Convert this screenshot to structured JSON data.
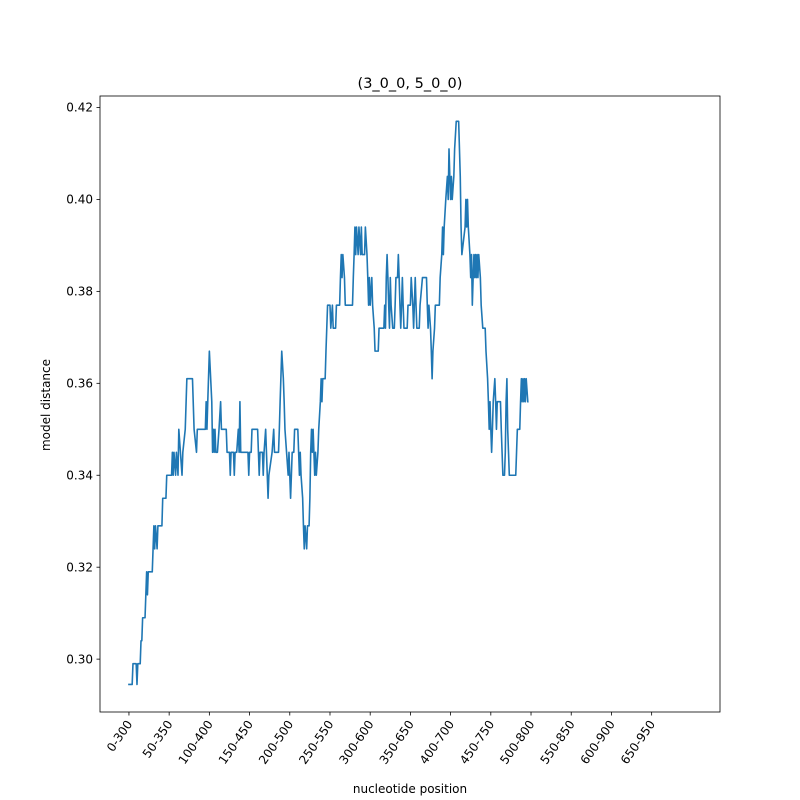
{
  "chart_data": {
    "type": "line",
    "title": "(3_0_0, 5_0_0)",
    "xlabel": "nucleotide position",
    "ylabel": "model distance",
    "ylim": [
      0.2885,
      0.4225
    ],
    "yticks": [
      0.3,
      0.32,
      0.34,
      0.36,
      0.38,
      0.4,
      0.42
    ],
    "ytick_labels": [
      "0.30",
      "0.32",
      "0.34",
      "0.36",
      "0.38",
      "0.40",
      "0.42"
    ],
    "xlim": [
      -36,
      735
    ],
    "xticks": [
      0,
      50,
      100,
      150,
      200,
      250,
      300,
      350,
      400,
      450,
      500,
      550,
      600,
      650
    ],
    "xtick_labels": [
      "0-300",
      "50-350",
      "100-400",
      "150-450",
      "200-500",
      "250-550",
      "300-600",
      "350-650",
      "400-700",
      "450-750",
      "500-800",
      "550-850",
      "600-900",
      "650-950"
    ],
    "grid": false,
    "series": [
      {
        "color": "#1f77b4",
        "points": [
          [
            0,
            0.2945
          ],
          [
            4,
            0.2945
          ],
          [
            5,
            0.299
          ],
          [
            9,
            0.299
          ],
          [
            10,
            0.2945
          ],
          [
            11,
            0.299
          ],
          [
            14,
            0.299
          ],
          [
            15,
            0.304
          ],
          [
            16,
            0.304
          ],
          [
            17,
            0.309
          ],
          [
            20,
            0.309
          ],
          [
            21,
            0.314
          ],
          [
            22,
            0.319
          ],
          [
            23,
            0.314
          ],
          [
            24,
            0.319
          ],
          [
            29,
            0.319
          ],
          [
            30,
            0.324
          ],
          [
            31,
            0.329
          ],
          [
            32,
            0.324
          ],
          [
            33,
            0.329
          ],
          [
            35,
            0.324
          ],
          [
            36,
            0.329
          ],
          [
            41,
            0.329
          ],
          [
            42,
            0.335
          ],
          [
            46,
            0.335
          ],
          [
            47,
            0.34
          ],
          [
            53,
            0.34
          ],
          [
            54,
            0.345
          ],
          [
            55,
            0.34
          ],
          [
            56,
            0.345
          ],
          [
            58,
            0.34
          ],
          [
            59,
            0.345
          ],
          [
            61,
            0.34
          ],
          [
            62,
            0.35
          ],
          [
            64,
            0.345
          ],
          [
            66,
            0.34
          ],
          [
            67,
            0.345
          ],
          [
            70,
            0.35
          ],
          [
            72,
            0.361
          ],
          [
            79,
            0.361
          ],
          [
            81,
            0.35
          ],
          [
            84,
            0.345
          ],
          [
            85,
            0.35
          ],
          [
            95,
            0.35
          ],
          [
            96,
            0.356
          ],
          [
            97,
            0.35
          ],
          [
            98,
            0.356
          ],
          [
            100,
            0.367
          ],
          [
            103,
            0.356
          ],
          [
            104,
            0.345
          ],
          [
            105,
            0.35
          ],
          [
            106,
            0.345
          ],
          [
            107,
            0.35
          ],
          [
            108,
            0.345
          ],
          [
            110,
            0.345
          ],
          [
            112,
            0.35
          ],
          [
            114,
            0.356
          ],
          [
            115,
            0.35
          ],
          [
            121,
            0.35
          ],
          [
            122,
            0.345
          ],
          [
            125,
            0.345
          ],
          [
            126,
            0.34
          ],
          [
            127,
            0.345
          ],
          [
            130,
            0.345
          ],
          [
            131,
            0.34
          ],
          [
            132,
            0.345
          ],
          [
            134,
            0.345
          ],
          [
            136,
            0.35
          ],
          [
            137,
            0.345
          ],
          [
            138,
            0.356
          ],
          [
            139,
            0.345
          ],
          [
            148,
            0.345
          ],
          [
            149,
            0.34
          ],
          [
            150,
            0.345
          ],
          [
            152,
            0.345
          ],
          [
            153,
            0.35
          ],
          [
            160,
            0.35
          ],
          [
            161,
            0.345
          ],
          [
            162,
            0.34
          ],
          [
            163,
            0.345
          ],
          [
            166,
            0.345
          ],
          [
            167,
            0.34
          ],
          [
            168,
            0.345
          ],
          [
            170,
            0.35
          ],
          [
            171,
            0.345
          ],
          [
            172,
            0.34
          ],
          [
            173,
            0.335
          ],
          [
            174,
            0.34
          ],
          [
            178,
            0.345
          ],
          [
            180,
            0.35
          ],
          [
            181,
            0.345
          ],
          [
            186,
            0.345
          ],
          [
            187,
            0.35
          ],
          [
            188,
            0.356
          ],
          [
            190,
            0.367
          ],
          [
            192,
            0.361
          ],
          [
            193,
            0.356
          ],
          [
            194,
            0.35
          ],
          [
            198,
            0.34
          ],
          [
            199,
            0.345
          ],
          [
            200,
            0.34
          ],
          [
            201,
            0.335
          ],
          [
            202,
            0.34
          ],
          [
            203,
            0.345
          ],
          [
            205,
            0.345
          ],
          [
            206,
            0.35
          ],
          [
            210,
            0.35
          ],
          [
            211,
            0.345
          ],
          [
            212,
            0.34
          ],
          [
            213,
            0.345
          ],
          [
            214,
            0.34
          ],
          [
            216,
            0.335
          ],
          [
            217,
            0.329
          ],
          [
            218,
            0.324
          ],
          [
            219,
            0.329
          ],
          [
            221,
            0.324
          ],
          [
            222,
            0.329
          ],
          [
            224,
            0.329
          ],
          [
            225,
            0.335
          ],
          [
            226,
            0.345
          ],
          [
            227,
            0.35
          ],
          [
            228,
            0.345
          ],
          [
            229,
            0.35
          ],
          [
            230,
            0.345
          ],
          [
            231,
            0.34
          ],
          [
            232,
            0.345
          ],
          [
            233,
            0.34
          ],
          [
            235,
            0.345
          ],
          [
            236,
            0.35
          ],
          [
            238,
            0.356
          ],
          [
            239,
            0.361
          ],
          [
            240,
            0.356
          ],
          [
            241,
            0.361
          ],
          [
            244,
            0.361
          ],
          [
            245,
            0.367
          ],
          [
            246,
            0.372
          ],
          [
            247,
            0.377
          ],
          [
            250,
            0.377
          ],
          [
            251,
            0.372
          ],
          [
            253,
            0.377
          ],
          [
            254,
            0.372
          ],
          [
            257,
            0.372
          ],
          [
            258,
            0.377
          ],
          [
            262,
            0.377
          ],
          [
            263,
            0.383
          ],
          [
            264,
            0.388
          ],
          [
            265,
            0.383
          ],
          [
            266,
            0.388
          ],
          [
            268,
            0.383
          ],
          [
            269,
            0.377
          ],
          [
            278,
            0.377
          ],
          [
            279,
            0.383
          ],
          [
            280,
            0.388
          ],
          [
            281,
            0.394
          ],
          [
            282,
            0.388
          ],
          [
            283,
            0.394
          ],
          [
            285,
            0.388
          ],
          [
            286,
            0.394
          ],
          [
            288,
            0.388
          ],
          [
            289,
            0.394
          ],
          [
            290,
            0.388
          ],
          [
            293,
            0.388
          ],
          [
            294,
            0.394
          ],
          [
            296,
            0.388
          ],
          [
            297,
            0.383
          ],
          [
            298,
            0.377
          ],
          [
            299,
            0.383
          ],
          [
            300,
            0.377
          ],
          [
            302,
            0.383
          ],
          [
            303,
            0.377
          ],
          [
            305,
            0.372
          ],
          [
            306,
            0.367
          ],
          [
            310,
            0.367
          ],
          [
            311,
            0.372
          ],
          [
            317,
            0.372
          ],
          [
            318,
            0.377
          ],
          [
            319,
            0.372
          ],
          [
            320,
            0.383
          ],
          [
            321,
            0.388
          ],
          [
            322,
            0.383
          ],
          [
            323,
            0.377
          ],
          [
            324,
            0.372
          ],
          [
            325,
            0.383
          ],
          [
            326,
            0.377
          ],
          [
            328,
            0.372
          ],
          [
            330,
            0.372
          ],
          [
            331,
            0.377
          ],
          [
            332,
            0.383
          ],
          [
            334,
            0.383
          ],
          [
            335,
            0.388
          ],
          [
            336,
            0.383
          ],
          [
            337,
            0.377
          ],
          [
            338,
            0.372
          ],
          [
            339,
            0.377
          ],
          [
            340,
            0.383
          ],
          [
            341,
            0.377
          ],
          [
            342,
            0.372
          ],
          [
            346,
            0.372
          ],
          [
            347,
            0.377
          ],
          [
            350,
            0.377
          ],
          [
            351,
            0.383
          ],
          [
            353,
            0.377
          ],
          [
            354,
            0.372
          ],
          [
            356,
            0.383
          ],
          [
            357,
            0.377
          ],
          [
            358,
            0.372
          ],
          [
            361,
            0.372
          ],
          [
            362,
            0.377
          ],
          [
            365,
            0.383
          ],
          [
            370,
            0.383
          ],
          [
            371,
            0.377
          ],
          [
            372,
            0.372
          ],
          [
            373,
            0.377
          ],
          [
            375,
            0.372
          ],
          [
            376,
            0.367
          ],
          [
            377,
            0.361
          ],
          [
            378,
            0.367
          ],
          [
            380,
            0.372
          ],
          [
            381,
            0.377
          ],
          [
            386,
            0.377
          ],
          [
            387,
            0.383
          ],
          [
            389,
            0.388
          ],
          [
            390,
            0.394
          ],
          [
            391,
            0.388
          ],
          [
            392,
            0.394
          ],
          [
            394,
            0.4
          ],
          [
            396,
            0.405
          ],
          [
            397,
            0.4
          ],
          [
            398,
            0.411
          ],
          [
            399,
            0.405
          ],
          [
            400,
            0.4
          ],
          [
            401,
            0.405
          ],
          [
            402,
            0.4
          ],
          [
            404,
            0.405
          ],
          [
            405,
            0.411
          ],
          [
            407,
            0.417
          ],
          [
            410,
            0.417
          ],
          [
            411,
            0.411
          ],
          [
            412,
            0.405
          ],
          [
            413,
            0.394
          ],
          [
            414,
            0.388
          ],
          [
            418,
            0.394
          ],
          [
            419,
            0.4
          ],
          [
            420,
            0.394
          ],
          [
            421,
            0.4
          ],
          [
            422,
            0.394
          ],
          [
            424,
            0.388
          ],
          [
            425,
            0.383
          ],
          [
            426,
            0.388
          ],
          [
            427,
            0.377
          ],
          [
            428,
            0.383
          ],
          [
            429,
            0.388
          ],
          [
            430,
            0.383
          ],
          [
            431,
            0.388
          ],
          [
            432,
            0.383
          ],
          [
            433,
            0.388
          ],
          [
            434,
            0.383
          ],
          [
            435,
            0.388
          ],
          [
            437,
            0.383
          ],
          [
            438,
            0.377
          ],
          [
            440,
            0.372
          ],
          [
            443,
            0.372
          ],
          [
            444,
            0.367
          ],
          [
            446,
            0.361
          ],
          [
            447,
            0.356
          ],
          [
            448,
            0.35
          ],
          [
            449,
            0.356
          ],
          [
            450,
            0.35
          ],
          [
            451,
            0.345
          ],
          [
            452,
            0.35
          ],
          [
            453,
            0.356
          ],
          [
            455,
            0.361
          ],
          [
            456,
            0.356
          ],
          [
            457,
            0.35
          ],
          [
            458,
            0.356
          ],
          [
            462,
            0.356
          ],
          [
            463,
            0.35
          ],
          [
            464,
            0.345
          ],
          [
            465,
            0.34
          ],
          [
            467,
            0.34
          ],
          [
            468,
            0.345
          ],
          [
            469,
            0.356
          ],
          [
            470,
            0.361
          ],
          [
            471,
            0.35
          ],
          [
            472,
            0.345
          ],
          [
            473,
            0.34
          ],
          [
            481,
            0.34
          ],
          [
            482,
            0.345
          ],
          [
            483,
            0.35
          ],
          [
            486,
            0.35
          ],
          [
            487,
            0.356
          ],
          [
            488,
            0.361
          ],
          [
            489,
            0.356
          ],
          [
            490,
            0.361
          ],
          [
            491,
            0.356
          ],
          [
            492,
            0.361
          ],
          [
            493,
            0.356
          ],
          [
            494,
            0.361
          ],
          [
            496,
            0.356
          ]
        ]
      }
    ]
  }
}
